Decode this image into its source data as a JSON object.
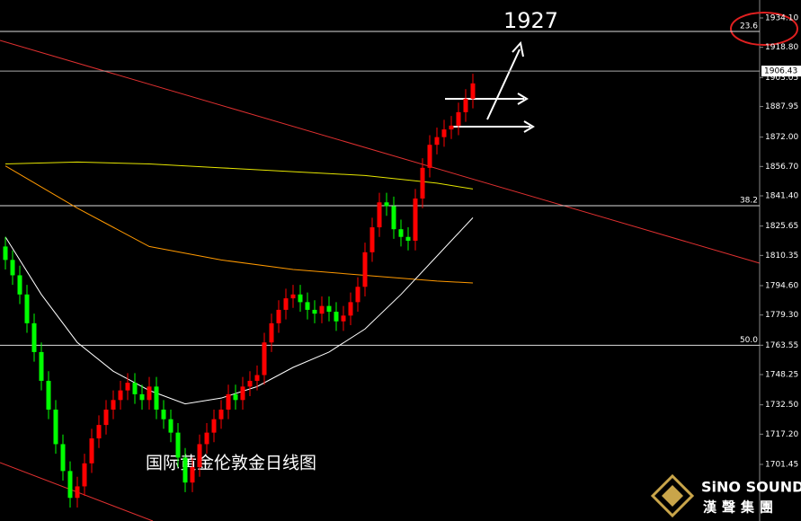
{
  "chart_data": {
    "type": "candlestick",
    "annotation": "1927",
    "caption": "国际黄金伦敦金日线图",
    "logo": {
      "brand": "SiNO SOUND",
      "subtitle": "漢聲集團"
    },
    "ylim": [
      1671.95,
      1943.46
    ],
    "yticks": [
      {
        "value": 1934.1,
        "label": "1934.10"
      },
      {
        "value": 1918.8,
        "label": "1918.80"
      },
      {
        "value": 1903.05,
        "label": "1903.05"
      },
      {
        "value": 1887.95,
        "label": "1887.95"
      },
      {
        "value": 1872,
        "label": "1872.00"
      },
      {
        "value": 1856.7,
        "label": "1856.70"
      },
      {
        "value": 1841.4,
        "label": "1841.40"
      },
      {
        "value": 1825.65,
        "label": "1825.65"
      },
      {
        "value": 1810.35,
        "label": "1810.35"
      },
      {
        "value": 1794.6,
        "label": "1794.60"
      },
      {
        "value": 1779.3,
        "label": "1779.30"
      },
      {
        "value": 1763.55,
        "label": "1763.55"
      },
      {
        "value": 1748.25,
        "label": "1748.25"
      },
      {
        "value": 1732.5,
        "label": "1732.50"
      },
      {
        "value": 1717.2,
        "label": "1717.20"
      },
      {
        "value": 1701.45,
        "label": "1701.45"
      }
    ],
    "current_price": 1906.43,
    "levels": [
      {
        "label": "23.6",
        "value": 1927.1
      },
      {
        "label": "38.2",
        "value": 1836.25
      },
      {
        "label": "50.0",
        "value": 1763.55
      }
    ],
    "up_color": "#ff0000",
    "down_color": "#00ff00",
    "open": [
      1815,
      1808,
      1800,
      1790,
      1775,
      1760,
      1745,
      1730,
      1712,
      1698,
      1684,
      1690,
      1702,
      1715,
      1722,
      1730,
      1735,
      1740,
      1744,
      1738,
      1735,
      1742,
      1730,
      1725,
      1718,
      1705,
      1692,
      1700,
      1712,
      1718,
      1725,
      1730,
      1738,
      1735,
      1742,
      1745,
      1748,
      1765,
      1775,
      1782,
      1788,
      1790,
      1786,
      1782,
      1780,
      1784,
      1781,
      1776,
      1779,
      1786,
      1794,
      1812,
      1825,
      1838,
      1836,
      1824,
      1820,
      1818,
      1840,
      1856,
      1868,
      1872,
      1876,
      1878,
      1885,
      1892
    ],
    "high": [
      1820,
      1813,
      1805,
      1795,
      1780,
      1765,
      1750,
      1735,
      1717,
      1703,
      1695,
      1707,
      1720,
      1727,
      1735,
      1740,
      1745,
      1749,
      1749,
      1743,
      1747,
      1747,
      1735,
      1730,
      1723,
      1710,
      1705,
      1717,
      1723,
      1730,
      1735,
      1743,
      1743,
      1747,
      1750,
      1753,
      1770,
      1780,
      1787,
      1793,
      1795,
      1795,
      1791,
      1787,
      1789,
      1789,
      1786,
      1784,
      1791,
      1799,
      1817,
      1830,
      1843,
      1843,
      1841,
      1829,
      1825,
      1845,
      1861,
      1873,
      1877,
      1881,
      1883,
      1890,
      1897,
      1905
    ],
    "low": [
      1803,
      1795,
      1785,
      1770,
      1755,
      1740,
      1725,
      1707,
      1693,
      1679,
      1679,
      1685,
      1697,
      1710,
      1717,
      1725,
      1730,
      1735,
      1733,
      1730,
      1730,
      1725,
      1720,
      1713,
      1700,
      1687,
      1687,
      1695,
      1707,
      1713,
      1720,
      1725,
      1730,
      1730,
      1737,
      1740,
      1743,
      1760,
      1770,
      1777,
      1783,
      1781,
      1777,
      1775,
      1775,
      1776,
      1771,
      1771,
      1774,
      1781,
      1789,
      1807,
      1820,
      1831,
      1819,
      1815,
      1813,
      1813,
      1835,
      1851,
      1863,
      1867,
      1871,
      1873,
      1880,
      1887
    ],
    "close": [
      1808,
      1800,
      1790,
      1775,
      1760,
      1745,
      1730,
      1712,
      1698,
      1684,
      1690,
      1702,
      1715,
      1722,
      1730,
      1735,
      1740,
      1744,
      1738,
      1735,
      1742,
      1730,
      1725,
      1718,
      1705,
      1692,
      1700,
      1712,
      1718,
      1725,
      1730,
      1738,
      1735,
      1742,
      1745,
      1748,
      1765,
      1775,
      1782,
      1788,
      1790,
      1786,
      1782,
      1780,
      1784,
      1781,
      1776,
      1779,
      1786,
      1794,
      1812,
      1825,
      1838,
      1836,
      1824,
      1820,
      1818,
      1840,
      1856,
      1868,
      1872,
      1876,
      1878,
      1885,
      1892,
      1900
    ],
    "lines": [
      {
        "color": "#e6e600",
        "x": [
          0,
          10,
          20,
          30,
          40,
          50,
          60,
          65
        ],
        "values": [
          1858,
          1859,
          1858,
          1856,
          1854,
          1852,
          1848,
          1845
        ]
      },
      {
        "color": "#ff9900",
        "x": [
          0,
          10,
          20,
          30,
          40,
          50,
          60,
          65
        ],
        "values": [
          1857,
          1835,
          1815,
          1808,
          1803,
          1800,
          1797,
          1796
        ]
      },
      {
        "color": "#ffffff",
        "x": [
          0,
          5,
          10,
          15,
          20,
          25,
          30,
          35,
          40,
          45,
          50,
          55,
          60,
          65
        ],
        "values": [
          1820,
          1790,
          1765,
          1750,
          1740,
          1733,
          1736,
          1742,
          1752,
          1760,
          1772,
          1790,
          1810,
          1830
        ]
      }
    ]
  }
}
